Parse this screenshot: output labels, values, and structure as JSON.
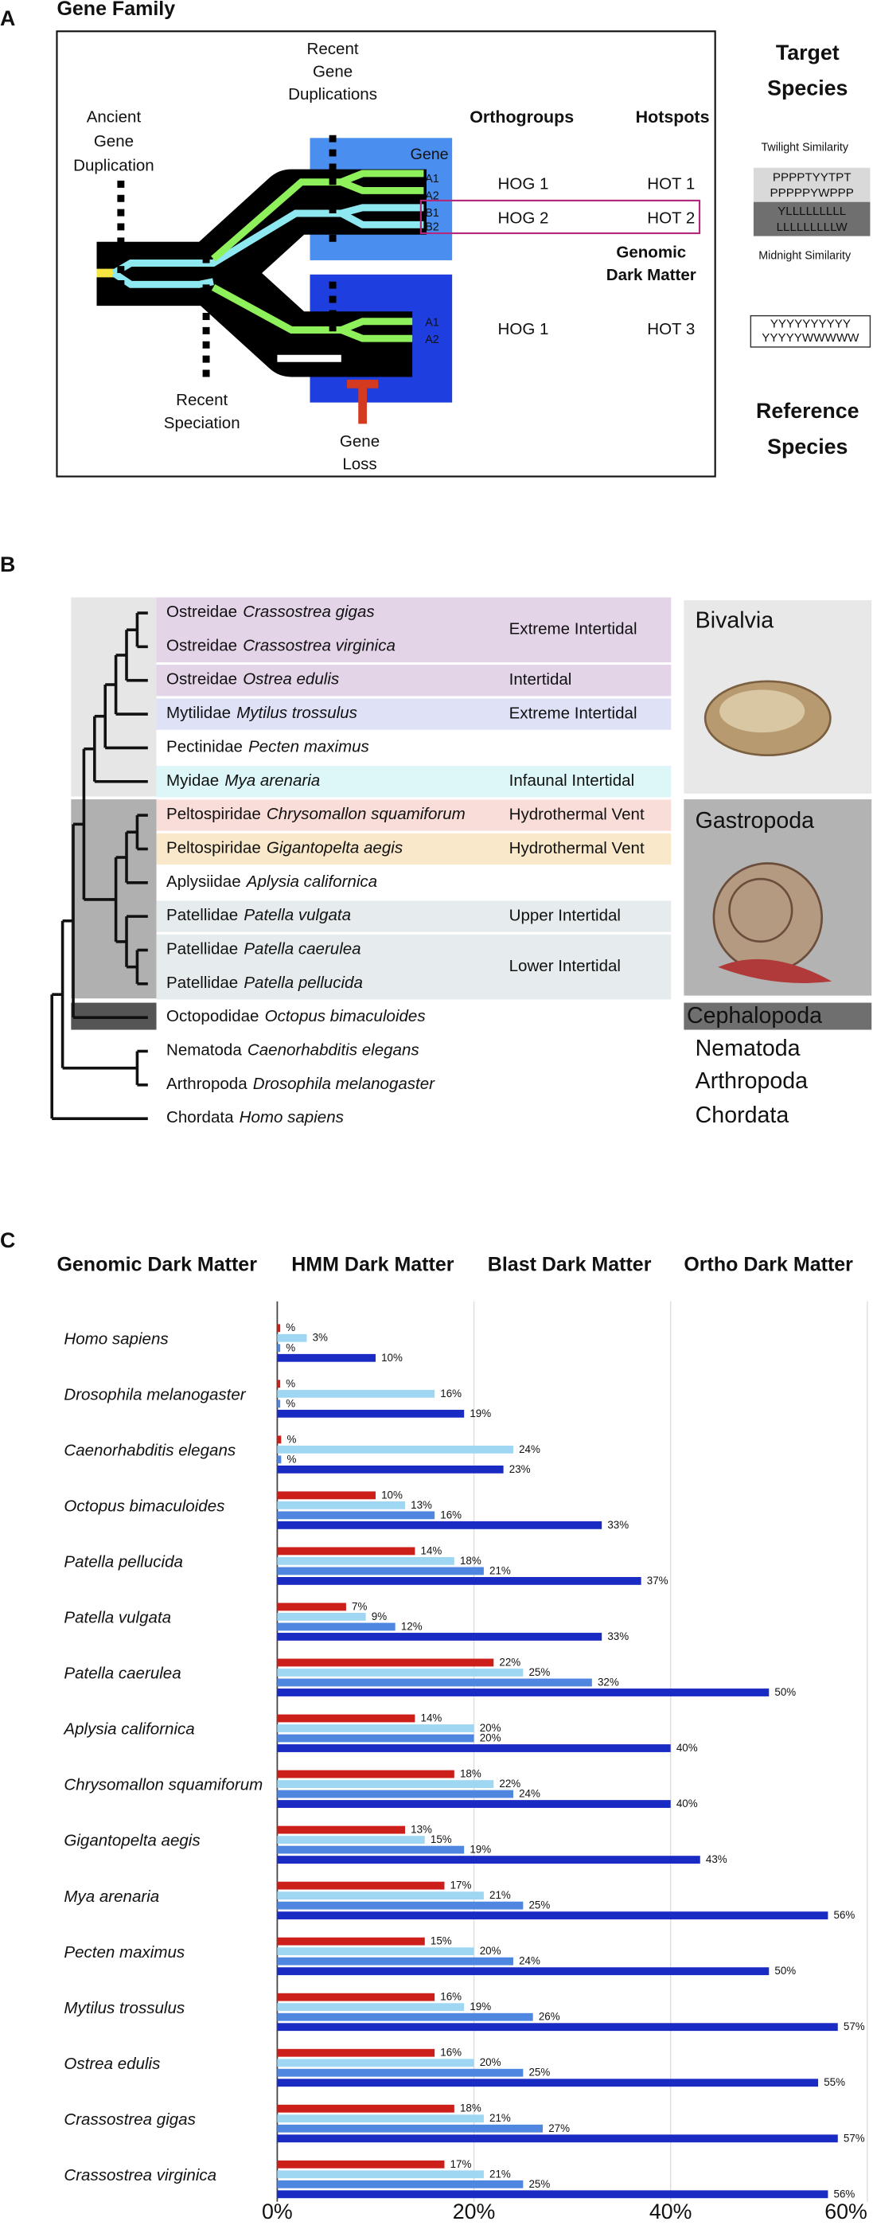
{
  "panel_a": {
    "label": "A",
    "title": "Gene Family",
    "ancient_duplication": [
      "Ancient",
      "Gene",
      "Duplication"
    ],
    "recent_duplications": [
      "Recent",
      "Gene",
      "Duplications"
    ],
    "recent_speciation": [
      "Recent",
      "Speciation"
    ],
    "gene_loss": [
      "Gene",
      "Loss"
    ],
    "gene": "Gene",
    "target_genes": [
      "A1",
      "A2",
      "B1",
      "B2"
    ],
    "reference_genes": [
      "A1",
      "A2"
    ],
    "orthogroups_header": "Orthogroups",
    "hotspots_header": "Hotspots",
    "orthogroups": [
      "HOG 1",
      "HOG 2",
      "HOG 1"
    ],
    "hotspots": [
      "HOT 1",
      "HOT 2",
      "HOT 3"
    ],
    "dark_matter": [
      "Genomic",
      "Dark Matter"
    ],
    "target_species": [
      "Target",
      "Species"
    ],
    "reference_species": [
      "Reference",
      "Species"
    ],
    "twilight": {
      "label": "Twilight Similarity",
      "target": [
        "PPPPTYYTPT",
        "PPPPPYWPPP"
      ],
      "reference": [
        "YLLLLLLLLL",
        "LLLLLLLLLW"
      ]
    },
    "midnight": {
      "label": "Midnight Similarity",
      "sequence": [
        "YYYYYYYYYY",
        "YYYYYWWWWW"
      ]
    }
  },
  "panel_b": {
    "label": "B",
    "blocks": [
      {
        "habitat": "Extreme Intertidal",
        "color": "#e3d4e7",
        "taxa": [
          {
            "family": "Ostreidae",
            "species": "Crassostrea gigas"
          },
          {
            "family": "Ostreidae",
            "species": "Crassostrea virginica"
          }
        ]
      },
      {
        "habitat": "Intertidal",
        "color": "#e3d4e7",
        "taxa": [
          {
            "family": "Ostreidae",
            "species": "Ostrea edulis"
          }
        ]
      },
      {
        "habitat": "Extreme Intertidal",
        "color": "#dfe1f6",
        "taxa": [
          {
            "family": "Mytilidae",
            "species": "Mytilus trossulus"
          }
        ]
      },
      {
        "taxa": [
          {
            "family": "Pectinidae",
            "species": "Pecten maximus"
          }
        ]
      },
      {
        "habitat": "Infaunal Intertidal",
        "color": "#ddf6f8",
        "taxa": [
          {
            "family": "Myidae",
            "species": "Mya arenaria"
          }
        ]
      },
      {
        "habitat": "Hydrothermal Vent",
        "color": "#f8ddd8",
        "taxa": [
          {
            "family": "Peltospiridae",
            "species": "Chrysomallon squamiforum"
          }
        ]
      },
      {
        "habitat": "Hydrothermal Vent",
        "color": "#f9e8c9",
        "taxa": [
          {
            "family": "Peltospiridae",
            "species": "Gigantopelta aegis"
          }
        ]
      },
      {
        "taxa": [
          {
            "family": "Aplysiidae",
            "species": "Aplysia californica"
          }
        ]
      },
      {
        "habitat": "Upper Intertidal",
        "color": "#e6ecee",
        "taxa": [
          {
            "family": "Patellidae",
            "species": "Patella vulgata"
          }
        ]
      },
      {
        "habitat": "Lower Intertidal",
        "color": "#e6ecee",
        "taxa": [
          {
            "family": "Patellidae",
            "species": "Patella caerulea"
          },
          {
            "family": "Patellidae",
            "species": "Patella pellucida"
          }
        ]
      },
      {
        "taxa": [
          {
            "family": "Octopodidae",
            "species": "Octopus bimaculoides"
          }
        ]
      },
      {
        "taxa": [
          {
            "family": "Nematoda",
            "species": "Caenorhabditis elegans"
          }
        ]
      },
      {
        "taxa": [
          {
            "family": "Arthropoda",
            "species": "Drosophila melanogaster"
          }
        ]
      },
      {
        "taxa": [
          {
            "family": "Chordata",
            "species": "Homo sapiens"
          }
        ]
      }
    ],
    "groups": [
      "Bivalvia",
      "Gastropoda",
      "Cephalopoda",
      "Nematoda",
      "Arthropoda",
      "Chordata"
    ]
  },
  "panel_c": {
    "label": "C"
  },
  "chart_data": {
    "type": "bar",
    "orientation": "horizontal",
    "categories": [
      "Homo sapiens",
      "Drosophila melanogaster",
      "Caenorhabditis elegans",
      "Octopus bimaculoides",
      "Patella pellucida",
      "Patella vulgata",
      "Patella caerulea",
      "Aplysia californica",
      "Chrysomallon squamiforum",
      "Gigantopelta aegis",
      "Mya arenaria",
      "Pecten maximus",
      "Mytilus trossulus",
      "Ostrea edulis",
      "Crassostrea gigas",
      "Crassostrea virginica"
    ],
    "series": [
      {
        "name": "Genomic Dark Matter",
        "color": "#cc1f1a",
        "values": [
          0.3,
          0.3,
          0.4,
          10,
          14,
          7,
          22,
          14,
          18,
          13,
          17,
          15,
          16,
          16,
          18,
          17
        ],
        "value_labels": [
          "%",
          "%",
          "%",
          "10%",
          "14%",
          "7%",
          "22%",
          "14%",
          "18%",
          "13%",
          "17%",
          "15%",
          "16%",
          "16%",
          "18%",
          "17%"
        ]
      },
      {
        "name": "HMM Dark Matter",
        "color": "#9fd7f3",
        "values": [
          3,
          16,
          24,
          13,
          18,
          9,
          25,
          20,
          22,
          15,
          21,
          20,
          19,
          20,
          21,
          21
        ],
        "value_labels": [
          "3%",
          "16%",
          "24%",
          "13%",
          "18%",
          "9%",
          "25%",
          "20%",
          "22%",
          "15%",
          "21%",
          "20%",
          "19%",
          "20%",
          "21%",
          "21%"
        ]
      },
      {
        "name": "Blast Dark Matter",
        "color": "#4f86e0",
        "values": [
          0.3,
          0.3,
          0.4,
          16,
          21,
          12,
          32,
          20,
          24,
          19,
          25,
          24,
          26,
          25,
          27,
          25
        ],
        "value_labels": [
          "%",
          "%",
          "%",
          "16%",
          "21%",
          "12%",
          "32%",
          "20%",
          "24%",
          "19%",
          "25%",
          "24%",
          "26%",
          "25%",
          "27%",
          "25%"
        ]
      },
      {
        "name": "Ortho Dark Matter",
        "color": "#1a2bc4",
        "values": [
          10,
          19,
          23,
          33,
          37,
          33,
          50,
          40,
          40,
          43,
          56,
          50,
          57,
          55,
          57,
          56
        ],
        "value_labels": [
          "10%",
          "19%",
          "23%",
          "33%",
          "37%",
          "33%",
          "50%",
          "40%",
          "40%",
          "43%",
          "56%",
          "50%",
          "57%",
          "55%",
          "57%",
          "56%"
        ]
      }
    ],
    "xlim": [
      0,
      60
    ],
    "xticks": [
      {
        "value": 0,
        "label": "0%"
      },
      {
        "value": 20,
        "label": "20%"
      },
      {
        "value": 40,
        "label": "40%"
      },
      {
        "value": 60,
        "label": "60%"
      }
    ],
    "grid": true
  }
}
